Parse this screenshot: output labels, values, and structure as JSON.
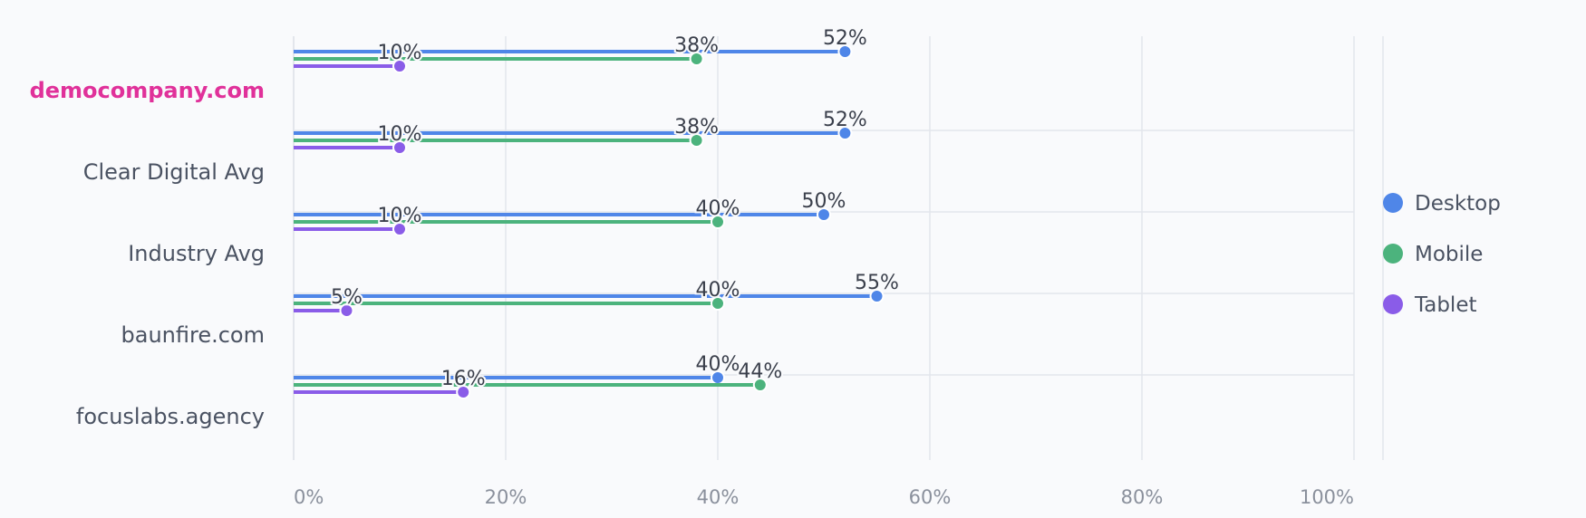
{
  "chart_data": {
    "type": "lollipop",
    "orientation": "horizontal",
    "categories": [
      "democompany.com",
      "Clear Digital Avg",
      "Industry Avg",
      "baunfire.com",
      "focuslabs.agency"
    ],
    "highlight_category": "democompany.com",
    "series": [
      {
        "name": "Desktop",
        "color": "#4f86e8",
        "values": [
          52,
          52,
          50,
          55,
          40
        ]
      },
      {
        "name": "Mobile",
        "color": "#4cb37d",
        "values": [
          38,
          38,
          40,
          40,
          44
        ]
      },
      {
        "name": "Tablet",
        "color": "#8a5ce8",
        "values": [
          10,
          10,
          10,
          5,
          16
        ]
      }
    ],
    "data_labels": [
      [
        "52%",
        "38%",
        "10%"
      ],
      [
        "52%",
        "38%",
        "10%"
      ],
      [
        "50%",
        "40%",
        "10%"
      ],
      [
        "55%",
        "40%",
        "5%"
      ],
      [
        "40%",
        "44%",
        "16%"
      ]
    ],
    "x_ticks": [
      0,
      20,
      40,
      60,
      80,
      100
    ],
    "x_tick_labels": [
      "0%",
      "20%",
      "40%",
      "60%",
      "80%",
      "100%"
    ],
    "xlim": [
      0,
      100
    ],
    "grid": true,
    "legend_position": "right",
    "colors": {
      "highlight_label": "#e0319a",
      "label": "#4a5262",
      "tick": "#8a909c",
      "grid": "#e3e6ec",
      "value_text": "#3a3f4b"
    }
  }
}
